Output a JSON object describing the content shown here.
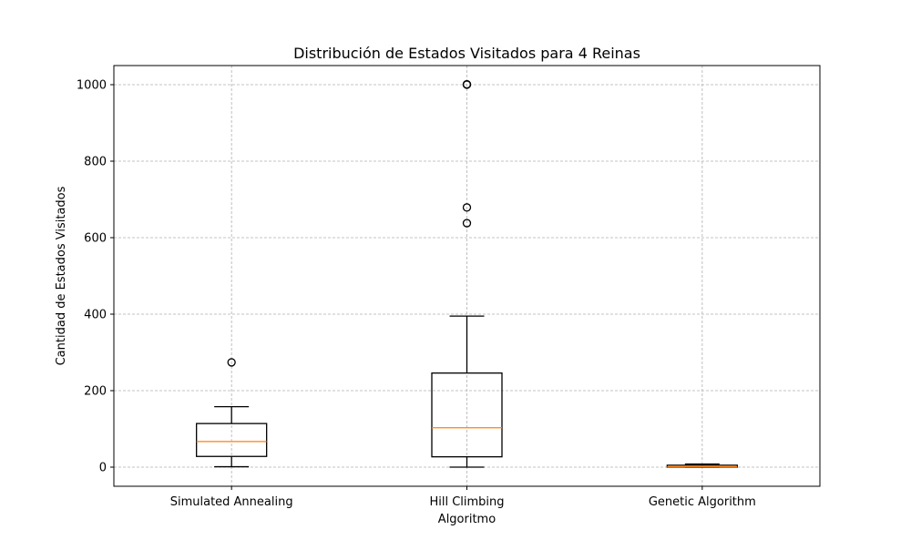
{
  "chart_data": {
    "type": "box",
    "title": "Distribución de Estados Visitados para 4 Reinas",
    "xlabel": "Algoritmo",
    "ylabel": "Cantidad de Estados Visitados",
    "ylim": [
      -50,
      1050
    ],
    "yticks": [
      0,
      200,
      400,
      600,
      800,
      1000
    ],
    "grid": true,
    "categories": [
      "Simulated Annealing",
      "Hill Climbing",
      "Genetic Algorithm"
    ],
    "boxes": [
      {
        "category": "Simulated Annealing",
        "whisker_low": 1,
        "q1": 28,
        "median": 67,
        "q3": 114,
        "whisker_high": 158,
        "outliers": [
          274
        ]
      },
      {
        "category": "Hill Climbing",
        "whisker_low": 0,
        "q1": 27,
        "median": 103,
        "q3": 246,
        "whisker_high": 395,
        "outliers": [
          638,
          679,
          1000,
          1001
        ]
      },
      {
        "category": "Genetic Algorithm",
        "whisker_low": 0,
        "q1": 0,
        "median": 1,
        "q3": 5,
        "whisker_high": 8,
        "outliers": []
      }
    ],
    "colors": {
      "box": "#000000",
      "median": "#ff7f0e",
      "grid": "#b0b0b0"
    }
  }
}
